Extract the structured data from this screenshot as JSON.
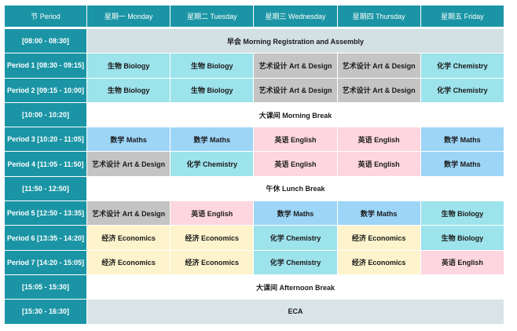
{
  "colors": {
    "header": "#1b95a5",
    "Biology": "#9de3ec",
    "Chemistry": "#9de3ec",
    "Art": "#c4c4c4",
    "Maths": "#9dd5f7",
    "English": "#fdd6df",
    "Economics": "#fdf3cc",
    "assembly": "#d3e0e4",
    "break": "#ffffff",
    "eca": "#d9e4e8"
  },
  "header": [
    "节 Period",
    "星期一 Monday",
    "星期二 Tuesday",
    "星期三 Wednesday",
    "星期四 Thursday",
    "星期五 Friday"
  ],
  "rows": [
    {
      "period": "[08:00 - 08:30]",
      "span": "早会 Morning Registration and Assembly",
      "kind": "assembly"
    },
    {
      "period": "Period 1 [08:30 - 09:15]",
      "cells": [
        [
          "生物 Biology",
          "Biology"
        ],
        [
          "生物 Biology",
          "Biology"
        ],
        [
          "艺术设计 Art & Design",
          "Art"
        ],
        [
          "艺术设计 Art & Design",
          "Art"
        ],
        [
          "化学 Chemistry",
          "Chemistry"
        ]
      ]
    },
    {
      "period": "Period 2 [09:15 - 10:00]",
      "cells": [
        [
          "生物 Biology",
          "Biology"
        ],
        [
          "生物 Biology",
          "Biology"
        ],
        [
          "艺术设计 Art & Design",
          "Art"
        ],
        [
          "艺术设计 Art & Design",
          "Art"
        ],
        [
          "化学 Chemistry",
          "Chemistry"
        ]
      ]
    },
    {
      "period": "[10:00 - 10:20]",
      "span": "大课间 Morning Break",
      "kind": "break"
    },
    {
      "period": "Period 3 [10:20 - 11:05]",
      "cells": [
        [
          "数学 Maths",
          "Maths"
        ],
        [
          "数学 Maths",
          "Maths"
        ],
        [
          "英语 English",
          "English"
        ],
        [
          "英语 English",
          "English"
        ],
        [
          "数学 Maths",
          "Maths"
        ]
      ]
    },
    {
      "period": "Period 4 [11:05 - 11:50]",
      "cells": [
        [
          "艺术设计 Art & Design",
          "Art"
        ],
        [
          "化学 Chemistry",
          "Chemistry"
        ],
        [
          "英语 English",
          "English"
        ],
        [
          "英语 English",
          "English"
        ],
        [
          "数学 Maths",
          "Maths"
        ]
      ]
    },
    {
      "period": "[11:50 - 12:50]",
      "span": "午休 Lunch Break",
      "kind": "break"
    },
    {
      "period": "Period 5 [12:50 - 13:35]",
      "cells": [
        [
          "艺术设计 Art & Design",
          "Art"
        ],
        [
          "英语 English",
          "English"
        ],
        [
          "数学 Maths",
          "Maths"
        ],
        [
          "数学 Maths",
          "Maths"
        ],
        [
          "生物 Biology",
          "Biology"
        ]
      ]
    },
    {
      "period": "Period 6 [13:35 - 14:20]",
      "cells": [
        [
          "经济 Economics",
          "Economics"
        ],
        [
          "经济 Economics",
          "Economics"
        ],
        [
          "化学 Chemistry",
          "Chemistry"
        ],
        [
          "经济 Economics",
          "Economics"
        ],
        [
          "生物 Biology",
          "Biology"
        ]
      ]
    },
    {
      "period": "Period 7 [14:20 - 15:05]",
      "cells": [
        [
          "经济 Economics",
          "Economics"
        ],
        [
          "经济 Economics",
          "Economics"
        ],
        [
          "化学 Chemistry",
          "Chemistry"
        ],
        [
          "经济 Economics",
          "Economics"
        ],
        [
          "英语 English",
          "English"
        ]
      ]
    },
    {
      "period": "[15:05 - 15:30]",
      "span": "大课间 Afternoon Break",
      "kind": "break"
    },
    {
      "period": "[15:30 - 16:30]",
      "span": "ECA",
      "kind": "eca"
    }
  ]
}
